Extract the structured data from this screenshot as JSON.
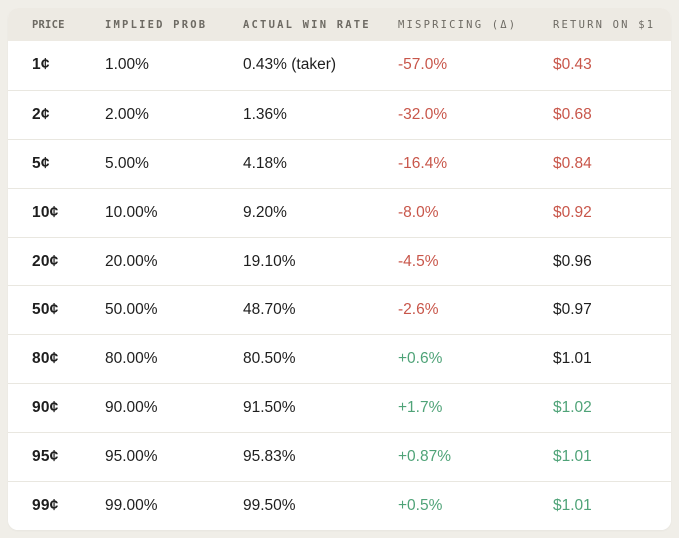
{
  "chart_data": {
    "type": "table",
    "columns": [
      {
        "key": "price",
        "label": "PRICE"
      },
      {
        "key": "implied_prob",
        "label": "IMPLIED PROB"
      },
      {
        "key": "actual_win_rate",
        "label": "ACTUAL WIN RATE"
      },
      {
        "key": "mispricing",
        "label": "MISPRICING (Δ)"
      },
      {
        "key": "return_on_1",
        "label": "RETURN ON $1"
      }
    ],
    "rows": [
      {
        "price": "1¢",
        "implied_prob": "1.00%",
        "actual_win_rate": "0.43% (taker)",
        "mispricing": "-57.0%",
        "return_on_1": "$0.43",
        "tones": {
          "mispricing": "negative",
          "return_on_1": "negative"
        }
      },
      {
        "price": "2¢",
        "implied_prob": "2.00%",
        "actual_win_rate": "1.36%",
        "mispricing": "-32.0%",
        "return_on_1": "$0.68",
        "tones": {
          "mispricing": "negative",
          "return_on_1": "negative"
        }
      },
      {
        "price": "5¢",
        "implied_prob": "5.00%",
        "actual_win_rate": "4.18%",
        "mispricing": "-16.4%",
        "return_on_1": "$0.84",
        "tones": {
          "mispricing": "negative",
          "return_on_1": "negative"
        }
      },
      {
        "price": "10¢",
        "implied_prob": "10.00%",
        "actual_win_rate": "9.20%",
        "mispricing": "-8.0%",
        "return_on_1": "$0.92",
        "tones": {
          "mispricing": "negative",
          "return_on_1": "negative"
        }
      },
      {
        "price": "20¢",
        "implied_prob": "20.00%",
        "actual_win_rate": "19.10%",
        "mispricing": "-4.5%",
        "return_on_1": "$0.96",
        "tones": {
          "mispricing": "negative",
          "return_on_1": "neutral"
        }
      },
      {
        "price": "50¢",
        "implied_prob": "50.00%",
        "actual_win_rate": "48.70%",
        "mispricing": "-2.6%",
        "return_on_1": "$0.97",
        "tones": {
          "mispricing": "negative",
          "return_on_1": "neutral"
        }
      },
      {
        "price": "80¢",
        "implied_prob": "80.00%",
        "actual_win_rate": "80.50%",
        "mispricing": "+0.6%",
        "return_on_1": "$1.01",
        "tones": {
          "mispricing": "positive",
          "return_on_1": "neutral"
        }
      },
      {
        "price": "90¢",
        "implied_prob": "90.00%",
        "actual_win_rate": "91.50%",
        "mispricing": "+1.7%",
        "return_on_1": "$1.02",
        "tones": {
          "mispricing": "positive",
          "return_on_1": "positive"
        }
      },
      {
        "price": "95¢",
        "implied_prob": "95.00%",
        "actual_win_rate": "95.83%",
        "mispricing": "+0.87%",
        "return_on_1": "$1.01",
        "tones": {
          "mispricing": "positive",
          "return_on_1": "positive"
        }
      },
      {
        "price": "99¢",
        "implied_prob": "99.00%",
        "actual_win_rate": "99.50%",
        "mispricing": "+0.5%",
        "return_on_1": "$1.01",
        "tones": {
          "mispricing": "positive",
          "return_on_1": "positive"
        }
      }
    ]
  },
  "colors": {
    "page_bg": "#f0eee8",
    "header_bg": "#edeae3",
    "card_bg": "#ffffff",
    "divider": "#e9e7e0",
    "neutral_text": "#1e1e1e",
    "negative": "#c8564a",
    "positive": "#4fa378",
    "header_text": "#6d6a63"
  }
}
